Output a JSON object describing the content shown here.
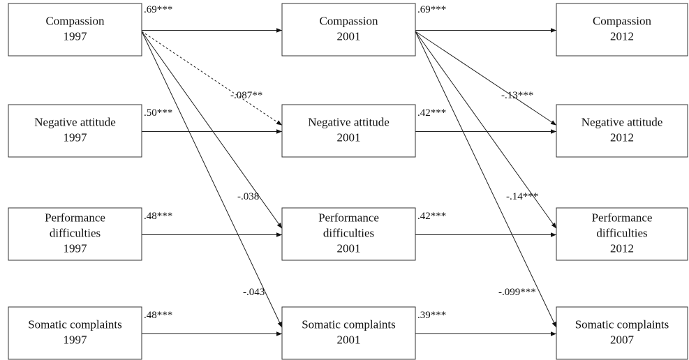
{
  "nodes": [
    {
      "lines": [
        "Compassion",
        "1997"
      ]
    },
    {
      "lines": [
        "Compassion",
        "2001"
      ]
    },
    {
      "lines": [
        "Compassion",
        "2012"
      ]
    },
    {
      "lines": [
        "Negative attitude",
        "1997"
      ]
    },
    {
      "lines": [
        "Negative attitude",
        "2001"
      ]
    },
    {
      "lines": [
        "Negative attitude",
        "2012"
      ]
    },
    {
      "lines": [
        "Performance",
        "difficulties",
        "1997"
      ]
    },
    {
      "lines": [
        "Performance",
        "difficulties",
        "2001"
      ]
    },
    {
      "lines": [
        "Performance",
        "difficulties",
        "2012"
      ]
    },
    {
      "lines": [
        "Somatic complaints",
        "1997"
      ]
    },
    {
      "lines": [
        "Somatic complaints",
        "2001"
      ]
    },
    {
      "lines": [
        "Somatic complaints",
        "2007"
      ]
    }
  ],
  "paths": [
    ".69***",
    ".50***",
    ".48***",
    ".48***",
    ".69***",
    ".42***",
    ".42***",
    ".39***",
    "-.087**",
    "-.038",
    "-.043",
    "-.13***",
    "-.14***",
    "-.099***"
  ]
}
